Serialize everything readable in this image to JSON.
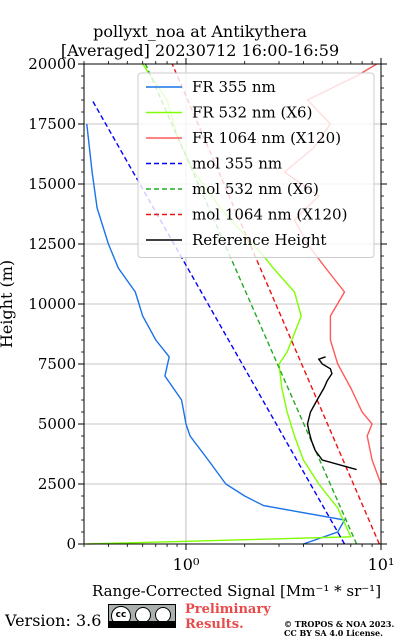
{
  "chart_data": {
    "type": "line",
    "title": "pollyxt_noa at Antikythera",
    "subtitle": "[Averaged] 20230712 16:00-16:59",
    "xlabel": "Range-Corrected Signal [Mm⁻¹ * sr⁻¹]",
    "ylabel": "Height (m)",
    "xscale": "log",
    "xlim": [
      0.3,
      10
    ],
    "ylim": [
      0,
      20000
    ],
    "x_tick_labels": [
      "10⁰",
      "10¹"
    ],
    "x_tick_values": [
      1,
      10
    ],
    "y_ticks": [
      0,
      2500,
      5000,
      7500,
      10000,
      12500,
      15000,
      17500,
      20000
    ],
    "grid": true,
    "legend_position": "top-right",
    "series": [
      {
        "name": "FR 355 nm",
        "color": "#1a73e8",
        "style": "solid",
        "x": [
          4.0,
          6.0,
          6.5,
          2.5,
          2.0,
          1.6,
          1.3,
          1.05,
          1.0,
          0.95,
          0.78,
          0.82,
          0.7,
          0.6,
          0.55,
          0.45,
          0.4,
          0.35,
          0.33,
          0.31
        ],
        "y": [
          0,
          500,
          1000,
          1600,
          2000,
          2500,
          3500,
          4500,
          5000,
          6000,
          7000,
          7800,
          8500,
          9500,
          10500,
          11500,
          12500,
          14000,
          15500,
          17500
        ]
      },
      {
        "name": "FR 532 nm (X6)",
        "color": "#7fff00",
        "style": "solid",
        "x": [
          0.31,
          7.0,
          6.0,
          4.8,
          4.0,
          3.6,
          3.3,
          3.1,
          3.0,
          3.3,
          3.9,
          3.6,
          2.8,
          2.5,
          2.2,
          1.5,
          1.1,
          0.9,
          0.8,
          0.6
        ],
        "y": [
          0,
          300,
          1500,
          2500,
          3500,
          4500,
          5500,
          6500,
          7500,
          8000,
          9500,
          10500,
          11500,
          12000,
          12500,
          14000,
          15500,
          17000,
          18500,
          20000
        ]
      },
      {
        "name": "FR 1064 nm (X120)",
        "color": "#ff5a5a",
        "style": "solid",
        "x": [
          10.0,
          9.0,
          8.5,
          9.0,
          8.0,
          7.0,
          6.0,
          5.5,
          5.5,
          6.5,
          5.2,
          4.2,
          3.6,
          4.8,
          3.2,
          4.5,
          5.5,
          4.2,
          7.5,
          9.5
        ],
        "y": [
          2500,
          3500,
          4500,
          5000,
          5500,
          6500,
          7500,
          8500,
          9500,
          10500,
          11500,
          12500,
          13500,
          14500,
          15500,
          16500,
          17500,
          18500,
          19500,
          20000
        ]
      },
      {
        "name": "mol 355 nm",
        "color": "#0000ff",
        "style": "dashed",
        "x": [
          6.5,
          0.33
        ],
        "y": [
          0,
          18500
        ]
      },
      {
        "name": "mol 532 nm (X6)",
        "color": "#22aa22",
        "style": "dashed",
        "x": [
          7.5,
          0.62
        ],
        "y": [
          0,
          20000
        ]
      },
      {
        "name": "mol 1064 nm (X120)",
        "color": "#ee1111",
        "style": "dashed",
        "x": [
          9.8,
          0.85
        ],
        "y": [
          0,
          20000
        ]
      },
      {
        "name": "Reference Height",
        "color": "#000000",
        "style": "solid",
        "x": [
          7.5,
          5.0,
          4.6,
          4.4,
          4.3,
          4.2,
          4.35,
          4.7,
          5.1,
          5.3,
          5.6,
          5.5,
          5.0,
          4.8,
          5.2
        ],
        "y": [
          3100,
          3500,
          3900,
          4300,
          4600,
          5000,
          5500,
          6000,
          6500,
          6800,
          7100,
          7300,
          7500,
          7700,
          7800
        ]
      }
    ]
  },
  "footer": {
    "version": "Version: 3.6",
    "license_badge": "cc-by-sa-badge",
    "license_text": "BY   SA",
    "preliminary_line1": "Preliminary",
    "preliminary_line2": "Results.",
    "copyright_line1": "© TROPOS & NOA 2023.",
    "copyright_line2": "CC BY SA 4.0 License."
  }
}
